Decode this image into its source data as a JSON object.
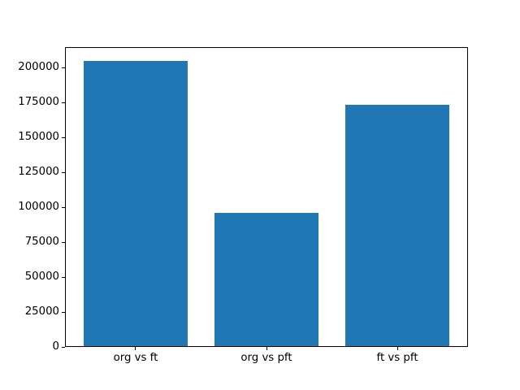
{
  "chart_data": {
    "type": "bar",
    "categories": [
      "org vs ft",
      "org vs pft",
      "ft vs pft"
    ],
    "values": [
      204800,
      95900,
      173200
    ],
    "title": "",
    "xlabel": "",
    "ylabel": "",
    "ylim": [
      0,
      214950
    ],
    "yticks": [
      0,
      25000,
      50000,
      75000,
      100000,
      125000,
      150000,
      175000,
      200000
    ],
    "bar_color": "#1f77b4",
    "background": "#ffffff",
    "grid": false,
    "legend": null
  }
}
